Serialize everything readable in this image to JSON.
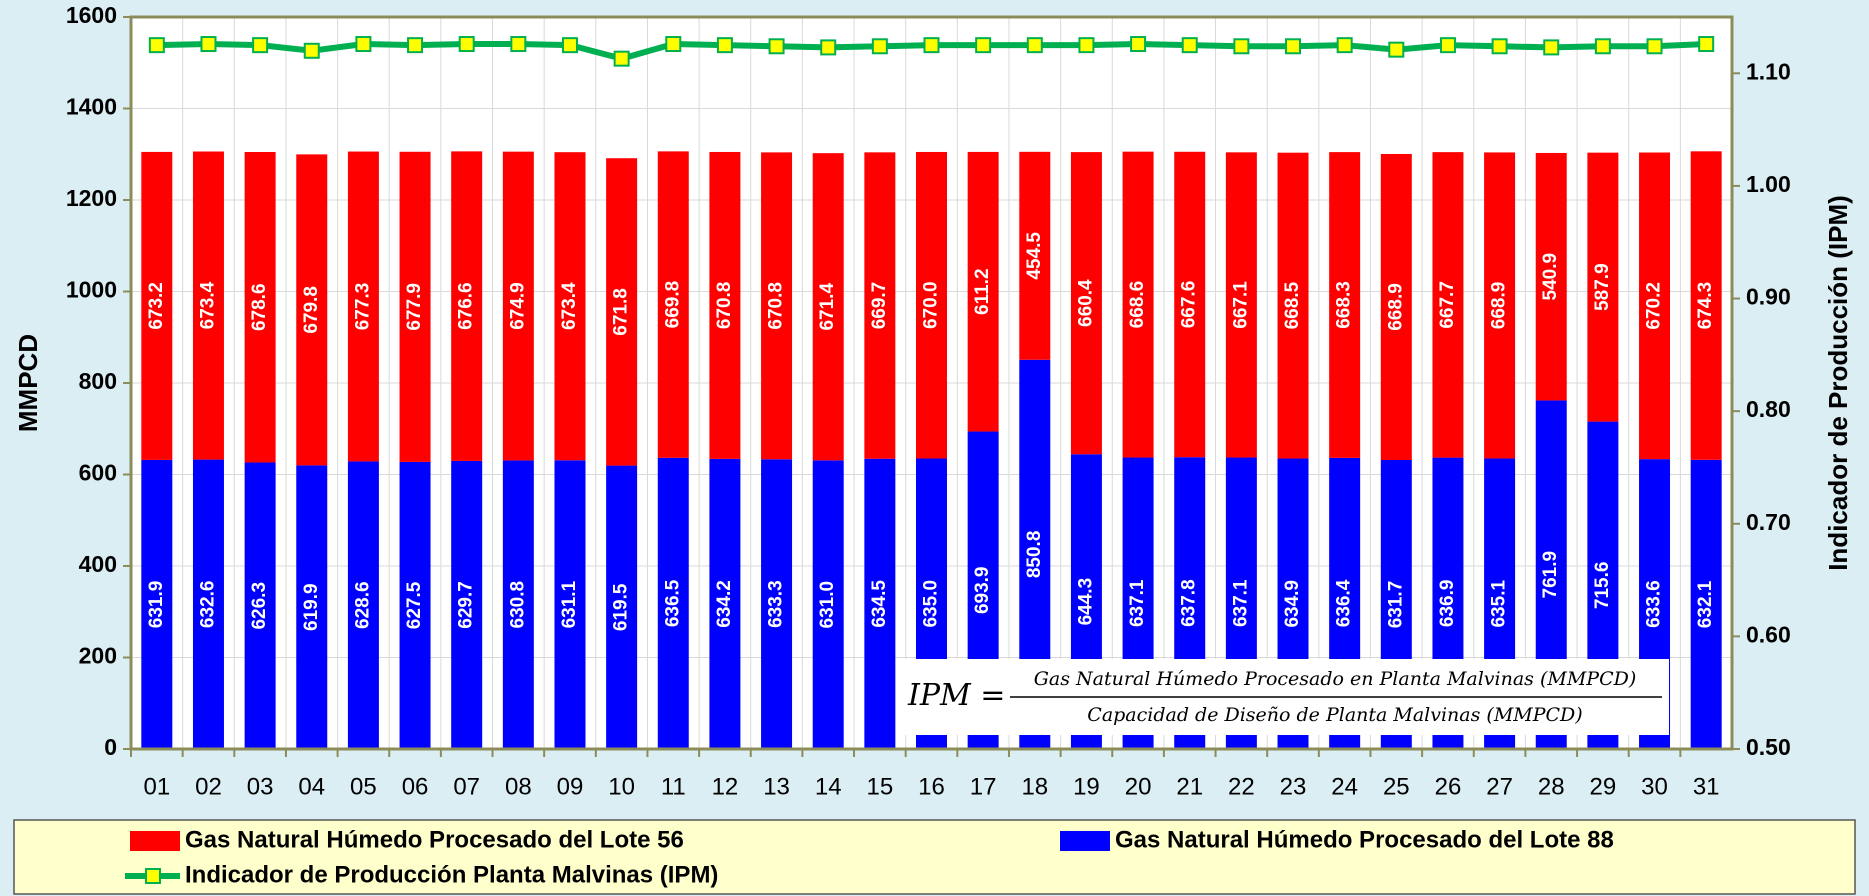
{
  "chart_data": {
    "type": "stacked_bar_line",
    "y_label": "MMPCD",
    "y2_label": "Indicador de Producción (IPM)",
    "categories": [
      "01",
      "02",
      "03",
      "04",
      "05",
      "06",
      "07",
      "08",
      "09",
      "10",
      "11",
      "12",
      "13",
      "14",
      "15",
      "16",
      "17",
      "18",
      "19",
      "20",
      "21",
      "22",
      "23",
      "24",
      "25",
      "26",
      "27",
      "28",
      "29",
      "30",
      "31"
    ],
    "series": [
      {
        "name": "Gas Natural Húmedo Procesado del Lote 88",
        "color": "#0000ff",
        "kind": "bar",
        "values": [
          631.9,
          632.6,
          626.3,
          619.9,
          628.6,
          627.5,
          629.7,
          630.8,
          631.1,
          619.5,
          636.5,
          634.2,
          633.3,
          631.0,
          634.5,
          635.0,
          693.9,
          850.8,
          644.3,
          637.1,
          637.8,
          637.1,
          634.9,
          636.4,
          631.7,
          636.9,
          635.1,
          761.9,
          715.6,
          633.6,
          632.1
        ],
        "value_labels": [
          "631.9",
          "632.6",
          "626.3",
          "619.9",
          "628.6",
          "627.5",
          "629.7",
          "630.8",
          "631.1",
          "619.5",
          "636.5",
          "634.2",
          "633.3",
          "631.0",
          "634.5",
          "635.0",
          "693.9",
          "850.8",
          "644.3",
          "637.1",
          "637.8",
          "637.1",
          "634.9",
          "636.4",
          "631.7",
          "636.9",
          "635.1",
          "761.9",
          "715.6",
          "633.6",
          "632.1"
        ]
      },
      {
        "name": "Gas Natural Húmedo Procesado del Lote 56",
        "color": "#ff0000",
        "kind": "bar",
        "values": [
          673.2,
          673.4,
          678.6,
          679.8,
          677.3,
          677.9,
          676.6,
          674.9,
          673.4,
          671.8,
          669.8,
          670.8,
          670.8,
          671.4,
          669.7,
          670.0,
          611.2,
          454.5,
          660.4,
          668.6,
          667.6,
          667.1,
          668.5,
          668.3,
          668.9,
          667.7,
          668.9,
          540.9,
          587.9,
          670.2,
          674.3
        ],
        "value_labels": [
          "673.2",
          "673.4",
          "678.6",
          "679.8",
          "677.3",
          "677.9",
          "676.6",
          "674.9",
          "673.4",
          "671.8",
          "669.8",
          "670.8",
          "670.8",
          "671.4",
          "669.7",
          "670.0",
          "611.2",
          "454.5",
          "660.4",
          "668.6",
          "667.6",
          "667.1",
          "668.5",
          "668.3",
          "668.9",
          "667.7",
          "668.9",
          "540.9",
          "587.9",
          "670.2",
          "674.3"
        ]
      },
      {
        "name": "Indicador de Producción Planta Malvinas (IPM)",
        "color": "#00b050",
        "marker_color": "#ffff00",
        "kind": "line",
        "axis": "y2",
        "values": [
          1.125,
          1.126,
          1.125,
          1.12,
          1.126,
          1.125,
          1.126,
          1.126,
          1.125,
          1.113,
          1.126,
          1.125,
          1.124,
          1.123,
          1.124,
          1.125,
          1.125,
          1.125,
          1.125,
          1.126,
          1.125,
          1.124,
          1.124,
          1.125,
          1.121,
          1.125,
          1.124,
          1.123,
          1.124,
          1.124,
          1.126
        ]
      }
    ],
    "ylim": [
      0,
      1600
    ],
    "yticks": [
      0,
      200,
      400,
      600,
      800,
      1000,
      1200,
      1400,
      1600
    ],
    "y2lim": [
      0.5,
      1.15
    ],
    "y2ticks": [
      {
        "value": 0.5,
        "label": "0.50"
      },
      {
        "value": 0.6,
        "label": "0.60"
      },
      {
        "value": 0.7,
        "label": "0.70"
      },
      {
        "value": 0.8,
        "label": "0.80"
      },
      {
        "value": 0.9,
        "label": "0.90"
      },
      {
        "value": 1.0,
        "label": "1.00"
      },
      {
        "value": 1.1,
        "label": "1.10"
      }
    ],
    "grid": true,
    "legend": "bottom",
    "formula": {
      "lhs": "IPM =",
      "numerator": "Gas Natural Húmedo Procesado en Planta Malvinas (MMPCD)",
      "denominator": "Capacidad de Diseño de Planta Malvinas (MMPCD)"
    }
  }
}
